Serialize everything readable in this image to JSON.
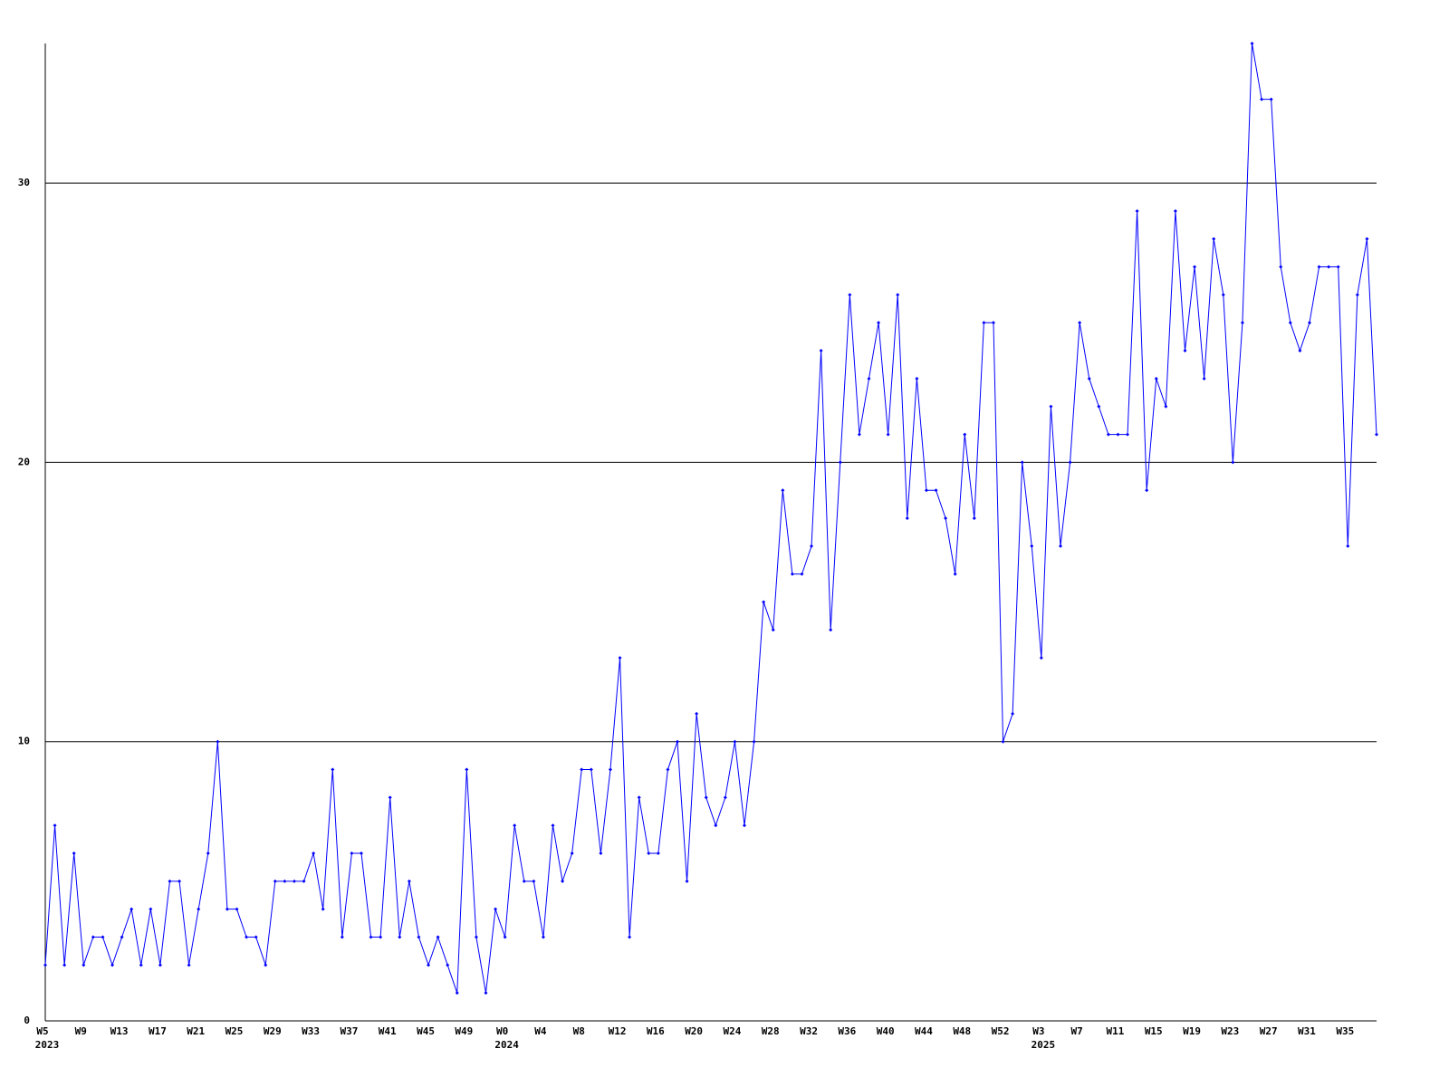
{
  "chart_data": {
    "type": "line",
    "categories": [
      "W5",
      null,
      null,
      null,
      "W9",
      null,
      null,
      null,
      "W13",
      null,
      null,
      null,
      "W17",
      null,
      null,
      null,
      "W21",
      null,
      null,
      null,
      "W25",
      null,
      null,
      null,
      "W29",
      null,
      null,
      null,
      "W33",
      null,
      null,
      null,
      "W37",
      null,
      null,
      null,
      "W41",
      null,
      null,
      null,
      "W45",
      null,
      null,
      null,
      "W49",
      null,
      null,
      null,
      "W0",
      null,
      null,
      null,
      "W4",
      null,
      null,
      null,
      "W8",
      null,
      null,
      null,
      "W12",
      null,
      null,
      null,
      "W16",
      null,
      null,
      null,
      "W20",
      null,
      null,
      null,
      "W24",
      null,
      null,
      null,
      "W28",
      null,
      null,
      null,
      "W32",
      null,
      null,
      null,
      "W36",
      null,
      null,
      null,
      "W40",
      null,
      null,
      null,
      "W44",
      null,
      null,
      null,
      "W48",
      null,
      null,
      null,
      "W52",
      null,
      null,
      null,
      "W3",
      null,
      null,
      null,
      "W7",
      null,
      null,
      null,
      "W11",
      null,
      null,
      null,
      "W15",
      null,
      null,
      null,
      "W19",
      null,
      null,
      null,
      "W23",
      null,
      null,
      null,
      "W27",
      null,
      null,
      null,
      "W31",
      null,
      null,
      null,
      "W35",
      null,
      null,
      null
    ],
    "category_years": [
      "2023",
      null,
      null,
      null,
      null,
      null,
      null,
      null,
      null,
      null,
      null,
      null,
      null,
      null,
      null,
      null,
      null,
      null,
      null,
      null,
      null,
      null,
      null,
      null,
      null,
      null,
      null,
      null,
      null,
      null,
      null,
      null,
      null,
      null,
      null,
      null,
      null,
      null,
      null,
      null,
      null,
      null,
      null,
      null,
      null,
      null,
      null,
      null,
      "2024",
      null,
      null,
      null,
      null,
      null,
      null,
      null,
      null,
      null,
      null,
      null,
      null,
      null,
      null,
      null,
      null,
      null,
      null,
      null,
      null,
      null,
      null,
      null,
      null,
      null,
      null,
      null,
      null,
      null,
      null,
      null,
      null,
      null,
      null,
      null,
      null,
      null,
      null,
      null,
      null,
      null,
      null,
      null,
      null,
      null,
      null,
      null,
      null,
      null,
      null,
      null,
      null,
      null,
      null,
      null,
      "2025",
      null,
      null,
      null,
      null,
      null,
      null,
      null,
      null,
      null,
      null,
      null,
      null,
      null,
      null,
      null,
      null,
      null,
      null,
      null,
      null,
      null,
      null,
      null,
      null,
      null,
      null,
      null,
      null,
      null,
      null,
      null,
      null,
      null,
      null
    ],
    "series": [
      {
        "color": "#0000ff",
        "values": [
          2,
          7,
          2,
          6,
          2,
          3,
          3,
          2,
          3,
          4,
          2,
          4,
          2,
          5,
          5,
          2,
          4,
          6,
          10,
          4,
          4,
          3,
          3,
          2,
          5,
          5,
          5,
          5,
          6,
          4,
          9,
          3,
          6,
          6,
          3,
          3,
          8,
          3,
          5,
          3,
          2,
          3,
          2,
          1,
          9,
          3,
          1,
          4,
          3,
          7,
          5,
          5,
          3,
          7,
          5,
          6,
          9,
          9,
          6,
          9,
          13,
          3,
          8,
          6,
          6,
          9,
          10,
          5,
          11,
          8,
          7,
          8,
          10,
          7,
          10,
          15,
          14,
          19,
          16,
          16,
          17,
          24,
          14,
          20,
          26,
          21,
          23,
          25,
          21,
          26,
          18,
          23,
          19,
          19,
          18,
          16,
          21,
          18,
          25,
          25,
          10,
          11,
          20,
          17,
          13,
          22,
          17,
          20,
          25,
          23,
          22,
          21,
          21,
          21,
          29,
          19,
          23,
          22,
          29,
          24,
          27,
          23,
          28,
          26,
          20,
          25,
          35,
          33,
          33,
          27,
          25,
          24,
          25,
          27,
          27,
          27,
          17,
          26,
          28,
          21
        ]
      }
    ],
    "ylim": [
      0,
      35
    ],
    "yticks": [
      0,
      10,
      20,
      30
    ],
    "grid": true
  }
}
